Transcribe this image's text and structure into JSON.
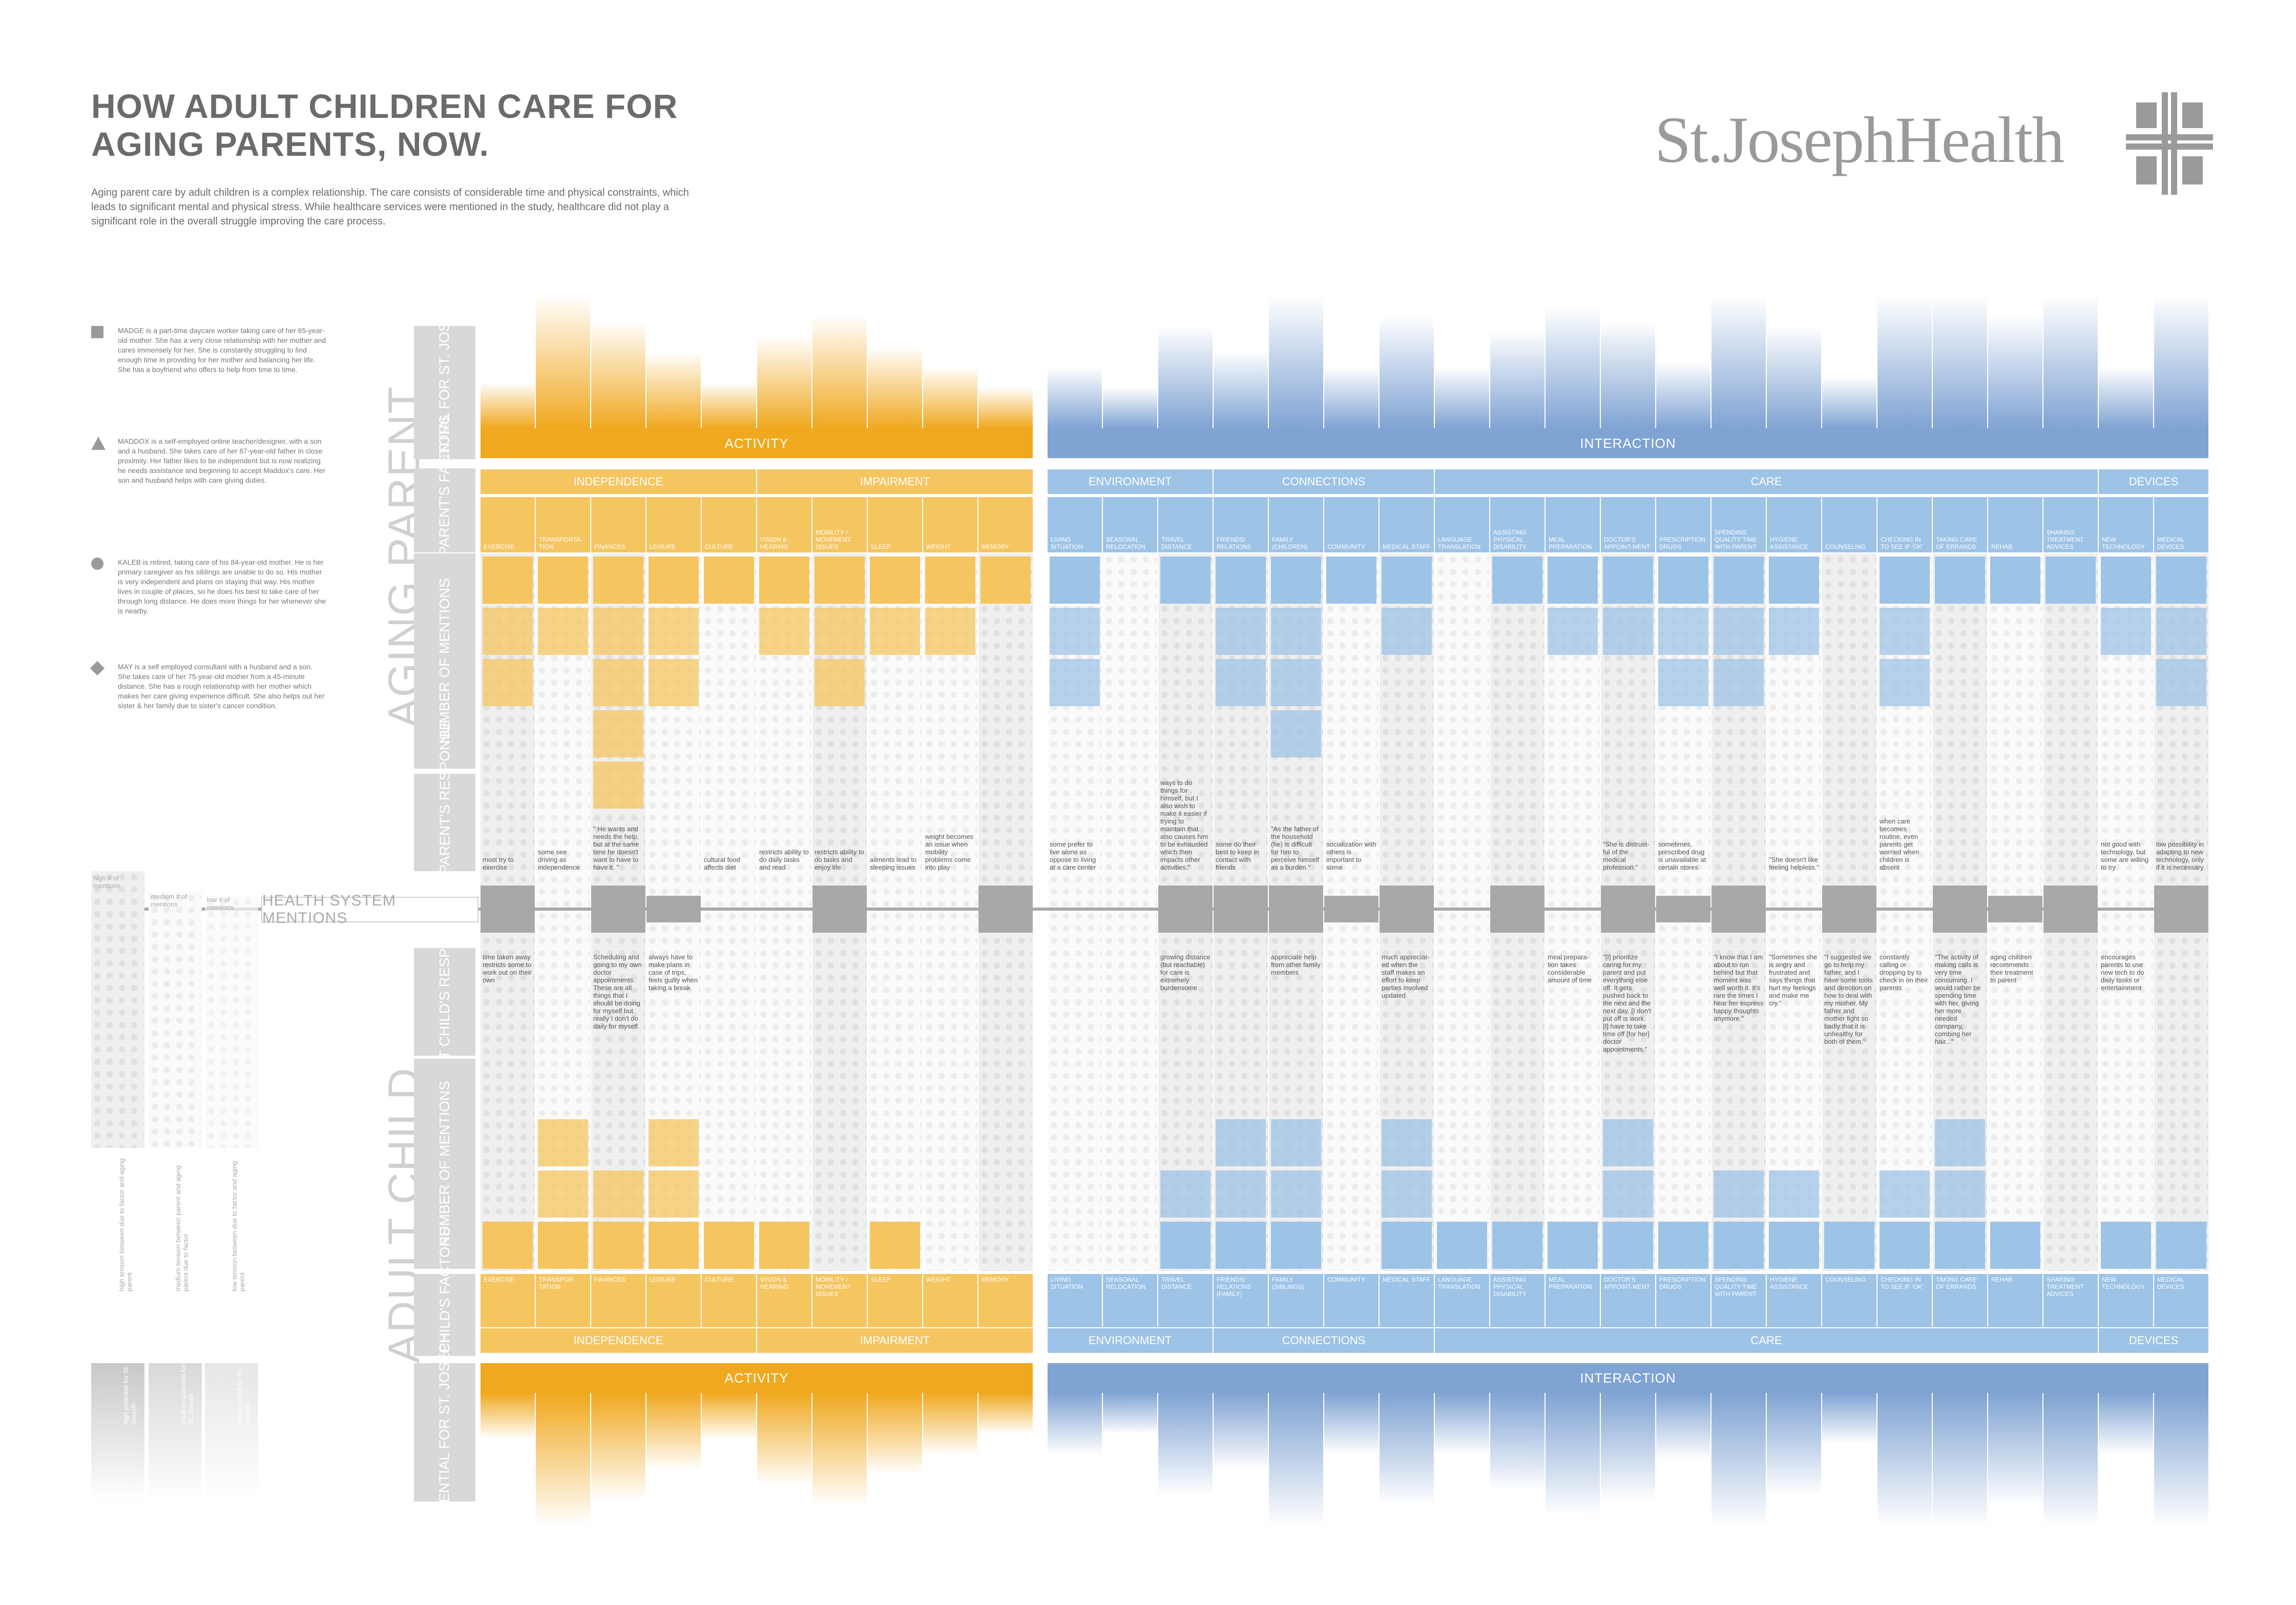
{
  "title": "HOW ADULT CHILDREN CARE FOR AGING PARENTS, NOW.",
  "intro": "Aging parent care by adult children is a complex relationship. The care consists of considerable time and physical constraints, which leads to significant mental and physical stress. While healthcare services were mentioned in the study, healthcare did not play a significant role in the overall struggle improving the care process.",
  "logo": {
    "text": "St.JosephHealth",
    "color": "#9a9a9a"
  },
  "colors": {
    "activity": "#f0a81f",
    "activity_light": "#f5c560",
    "interaction": "#7fa3d3",
    "interaction_light": "#9dc3e6",
    "gray": "#b0b0b0"
  },
  "personas": [
    {
      "symbol": "square",
      "text": "MADGE is a part-time daycare worker taking care of her 65-year-old mother. She has a very close relationship with her mother and cares immensely for her. She is constantly struggling to find enough time in providing for her mother and balancing her life. She has a boyfriend who offers to help from time to time."
    },
    {
      "symbol": "triangle",
      "text": "MADDOX is a self-employed online teacher/designer, with a son and a husband. She takes care of her 87-year-old father in close proximity. Her father likes to be independent but is now realizing he needs assistance and beginning to accept Maddox's care. Her son and husband helps with care giving duties."
    },
    {
      "symbol": "circle",
      "text": "KALEB is retired, taking care of his 84-year-old mother. He is her primary caregiver as his siblings are unable to do so. His mother is very independent and plans on staying that way. His mother lives in couple of places, so he does his best to take care of her through long distance. He does more things for her whenever she is nearby."
    },
    {
      "symbol": "diamond",
      "text": "MAY is a self employed consultant with a husband and a son. She takes care of her 75-year-old mother from a 45-minute distance. She has a rough relationship with her mother which makes her care giving experience difficult. She also helps out her sister & her family due to sister's cancer condition."
    }
  ],
  "section_labels": {
    "aging_parent": "AGING PARENT",
    "adult_child": "ADULT CHILD",
    "potential": "POTENTIAL FOR ST. JOSEPH",
    "aging_factors": "AGING PARENT'S FACTORS",
    "mentions": "NUMBER OF MENTIONS",
    "aging_response": "AGING PARENT'S RESPONSE",
    "child_response": "ADULT CHILD'S RESPONSE",
    "child_factors": "ADULT CHILD'S FACTORS",
    "health_system": "HEALTH SYSTEM MENTIONS"
  },
  "bands": {
    "activity": "ACTIVITY",
    "interaction": "INTERACTION"
  },
  "groups": [
    "INDEPENDENCE",
    "IMPAIRMENT",
    "ENVIRONMENT",
    "CONNECTIONS",
    "CARE",
    "DEVICES"
  ],
  "columns_top": [
    "EXERCISE",
    "TRANSPORTA-TION",
    "FINANCES",
    "LEISURE",
    "CULTURE",
    "VISION & HEARING",
    "MOBILITY / MOVEMENT ISSUES",
    "SLEEP",
    "WEIGHT",
    "MEMORY",
    "LIVING SITUATION",
    "SEASONAL RELOCATION",
    "TRAVEL DISTANCE",
    "FRIENDS/ RELATIONS",
    "FAMILY (CHILDREN)",
    "COMMUNITY",
    "MEDICAL STAFF",
    "LANGUAGE TRANSLATION",
    "ASSISTING PHYSICAL DISABILITY",
    "MEAL PREPARATION",
    "DOCTOR'S APPOINT-MENT",
    "PRESCRIPTION DRUGS",
    "SPENDING QUALITY TIME WITH PARENT",
    "HYGIENE ASSISTANCE",
    "COUNSELING",
    "CHECKING IN TO SEE IF 'OK'",
    "TAKING CARE OF ERRANDS",
    "REHAB",
    "SHARING TREATMENT ADVICES",
    "NEW TECHNOLOGY",
    "MEDICAL DEVICES"
  ],
  "columns_bottom": [
    "EXERCISE",
    "TRANSPOR-TATION",
    "FINANCES",
    "LEISURE",
    "CULTURE",
    "VISION & HEARING",
    "MOBILITY / MOVEMENT ISSUES",
    "SLEEP",
    "WEIGHT",
    "MEMORY",
    "LIVING SITUATION",
    "SEASONAL RELOCATION",
    "TRAVEL DISTANCE",
    "FRIENDS/ RELATIONS (FAMILY)",
    "FAMILY (SIBLINGS)",
    "COMMUNITY",
    "MEDICAL STAFF",
    "LANGUAGE TRANSLATION",
    "ASSISTING PHYSICAL DISABILITY",
    "MEAL PREPARATION",
    "DOCTOR'S APPOINT-MENT",
    "PRESCRIPTION DRUGS",
    "SPENDING QUALITY TIME WITH PARENT",
    "HYGIENE ASSISTANCE",
    "COUNSELING",
    "CHECKING IN TO SEE IF 'OK'",
    "TAKING CARE OF ERRANDS",
    "REHAB",
    "SHARING TREATMENT ADVICES",
    "NEW TECHNOLOGY",
    "MEDICAL DEVICES"
  ],
  "aging_responses": [
    "most try to exercise",
    "some see driving as independence",
    "\" He wants and needs the help, but at the same time he doesn't want to have to have it. \"",
    "",
    "cultural food affects diet",
    "restricts ability to do daily tasks and read",
    "restricts ability to do tasks and enjoy life",
    "ailments lead to sleeping issues",
    "weight becomes an issue when mobility problems come into play",
    "",
    "some prefer to live alone as oppose to living at a care center",
    "",
    "\"I wish for him to be able to have ways to do things for himself, but I also wish to make it easier if trying to maintain that also causes him to be exhausted which then impacts other activities.\"",
    "some do their best to keep in contact with friends",
    "\"As the father of the household (he) is difficult for him to perceive himself as a burden.\"",
    "socialization with others is important to some",
    "",
    "",
    "",
    "",
    "\"She is distrust-ful of the medical profession.\"",
    "sometimes, prescribed drug is unavailable at certain stores",
    "",
    "\"She doesn't like feeling helpless.\"",
    "",
    "when care becomes routine, even parents get worried when children is absent",
    "",
    "",
    "",
    "not good with technology, but some are willing to try",
    "low possibility in adapting to new technology, only if it is necessary."
  ],
  "child_responses": [
    "time taken away restricts some to work out on their own",
    "",
    "Scheduling and going to my own doctor appointments. These are all things that I should be doing for myself but really I don't do daily for myself.",
    "always have to make plans in case of trips, feels guilty when taking a break",
    "",
    "",
    "",
    "",
    "",
    "",
    "",
    "",
    "growing distance (but reachable) for care is extremely burdensome",
    "",
    "appreciate help from other family members",
    "",
    "much appreciat-ed when the staff makes an effort to keep parties involved updated",
    "",
    "",
    "meal prepara-tion takes considerable amount of time",
    "\"[I] prioritize caring for my parent and put everything else off. It gets pushed back to the next and the next day. [I don't put off is work. [I] have to take time off [for her] doctor appointments.\"",
    "",
    "\"I know that I am about to run behind but that moment was well worth it. It's rare the times I hear her express happy thoughts anymore.\"",
    "\"Sometimes she is angry and frustrated and says things that hurt my feelings and make me cry.\"",
    "\"I suggested we go to help my father, and I have some tools and direction on how to deal with my mother. My father and mother fight so badly that it is unhealthy for both of them.\"",
    "constantly calling or dropping by to check in on their parents",
    "\"The activity of making calls is very time consuming. I would rather be spending time with her, giving her more needed company, combing her hair...\"",
    "aging children recommends their treatment to parent",
    "",
    "encourages parents to use new tech to do daily tasks or entertainment",
    ""
  ],
  "legend": {
    "high": "high # of mentions",
    "medium": "medium # of mentions",
    "low": "low # of mentions"
  },
  "legend_rotated": [
    "high tension between due to factor and aging parent",
    "medium tension between parent and aging parent due to factor",
    "low tension between due to factor and aging parent"
  ],
  "legend_potential": [
    "high potential for St. Joseph",
    "medium potential for St. Joseph",
    "low potential for St. Joseph"
  ]
}
